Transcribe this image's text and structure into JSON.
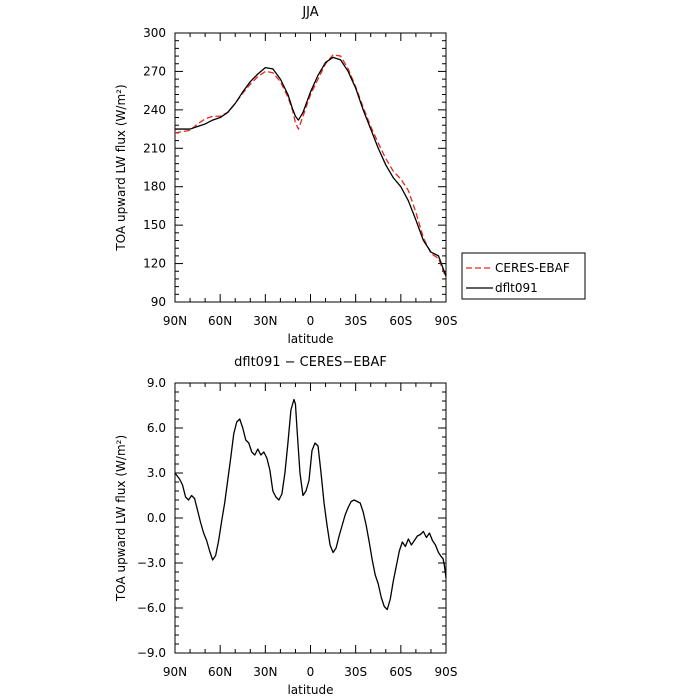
{
  "chart_data": [
    {
      "type": "line",
      "title": "JJA",
      "xlabel": "latitude",
      "ylabel": "TOA upward LW flux (W/m²)",
      "x_tick_labels": [
        "90N",
        "60N",
        "30N",
        "0",
        "30S",
        "60S",
        "90S"
      ],
      "x_tick_values": [
        90,
        60,
        30,
        0,
        -30,
        -60,
        -90
      ],
      "xlim": [
        90,
        -90
      ],
      "ylim": [
        90,
        300
      ],
      "y_ticks": [
        90,
        120,
        150,
        180,
        210,
        240,
        270,
        300
      ],
      "y_tick_labels": [
        "90",
        "120",
        "150",
        "180",
        "210",
        "240",
        "270",
        "300"
      ],
      "legend_position": "right-bottom (outside plot)",
      "series": [
        {
          "name": "CERES-EBAF",
          "style": "dashed",
          "color": "#e8261e",
          "x": [
            90,
            85,
            80,
            75,
            70,
            65,
            60,
            55,
            50,
            45,
            40,
            35,
            30,
            25,
            20,
            15,
            12,
            10,
            8,
            5,
            0,
            -5,
            -10,
            -15,
            -20,
            -25,
            -30,
            -35,
            -40,
            -45,
            -50,
            -55,
            -60,
            -65,
            -70,
            -75,
            -80,
            -85,
            -90
          ],
          "values": [
            222,
            223,
            224,
            229,
            233,
            235,
            235,
            238,
            245,
            253,
            260,
            266,
            270,
            269,
            262,
            250,
            240,
            230,
            225,
            235,
            252,
            264,
            276,
            283,
            282,
            272,
            258,
            242,
            227,
            214,
            202,
            192,
            186,
            177,
            160,
            140,
            128,
            124,
            109
          ]
        },
        {
          "name": "dflt091",
          "style": "solid",
          "color": "#000000",
          "x": [
            90,
            85,
            80,
            75,
            70,
            65,
            60,
            55,
            50,
            45,
            40,
            35,
            30,
            25,
            20,
            15,
            12,
            10,
            8,
            5,
            0,
            -5,
            -10,
            -15,
            -20,
            -25,
            -30,
            -35,
            -40,
            -45,
            -50,
            -55,
            -60,
            -65,
            -70,
            -75,
            -80,
            -85,
            -90
          ],
          "values": [
            225,
            225,
            225,
            227,
            229,
            232,
            234,
            238,
            245,
            254,
            262,
            268,
            273,
            272,
            264,
            252,
            241,
            235,
            232,
            238,
            254,
            267,
            277,
            281,
            279,
            270,
            257,
            240,
            225,
            210,
            197,
            187,
            180,
            169,
            154,
            138,
            129,
            126,
            110
          ]
        }
      ]
    },
    {
      "type": "line",
      "title": "dflt091 − CERES−EBAF",
      "xlabel": "latitude",
      "ylabel": "TOA upward LW flux (W/m²)",
      "x_tick_labels": [
        "90N",
        "60N",
        "30N",
        "0",
        "30S",
        "60S",
        "90S"
      ],
      "x_tick_values": [
        90,
        60,
        30,
        0,
        -30,
        -60,
        -90
      ],
      "xlim": [
        90,
        -90
      ],
      "ylim": [
        -9,
        9
      ],
      "y_ticks": [
        -9,
        -6,
        -3,
        0,
        3,
        6,
        9
      ],
      "y_tick_labels": [
        "−9.0",
        "−6.0",
        "−3.0",
        "0.0",
        "3.0",
        "6.0",
        "9.0"
      ],
      "series": [
        {
          "name": "",
          "style": "solid",
          "color": "#000000",
          "x": [
            90,
            87,
            85,
            83,
            81,
            79,
            77,
            75,
            73,
            71,
            69,
            67,
            65,
            63,
            61,
            59,
            57,
            55,
            53,
            51,
            49,
            47,
            45,
            43,
            41,
            39,
            37,
            35,
            33,
            31,
            29,
            27,
            25,
            23,
            21,
            19,
            17,
            15,
            13,
            11,
            10,
            9,
            7,
            5,
            3,
            1,
            -1,
            -3,
            -5,
            -7,
            -9,
            -11,
            -13,
            -15,
            -17,
            -19,
            -21,
            -23,
            -25,
            -27,
            -29,
            -31,
            -33,
            -35,
            -37,
            -39,
            -41,
            -43,
            -45,
            -47,
            -49,
            -51,
            -53,
            -55,
            -57,
            -59,
            -61,
            -63,
            -65,
            -67,
            -69,
            -71,
            -73,
            -75,
            -77,
            -79,
            -81,
            -83,
            -85,
            -87,
            -88,
            -89,
            -90
          ],
          "values": [
            3.0,
            2.6,
            2.2,
            1.4,
            1.2,
            1.5,
            1.3,
            0.5,
            -0.3,
            -1.0,
            -1.5,
            -2.2,
            -2.8,
            -2.5,
            -1.5,
            -0.2,
            1.0,
            2.5,
            4.0,
            5.6,
            6.4,
            6.6,
            6.0,
            5.2,
            5.0,
            4.4,
            4.2,
            4.6,
            4.2,
            4.4,
            4.0,
            3.2,
            1.8,
            1.4,
            1.2,
            1.6,
            3.0,
            5.0,
            7.2,
            7.9,
            7.6,
            6.0,
            3.0,
            1.5,
            1.8,
            2.5,
            4.5,
            5.0,
            4.8,
            3.0,
            1.0,
            -0.5,
            -1.8,
            -2.3,
            -2.0,
            -1.2,
            -0.5,
            0.2,
            0.7,
            1.1,
            1.2,
            1.1,
            1.0,
            0.4,
            -0.5,
            -1.6,
            -2.8,
            -3.8,
            -4.4,
            -5.3,
            -5.9,
            -6.1,
            -5.4,
            -4.2,
            -3.2,
            -2.2,
            -1.6,
            -1.9,
            -1.4,
            -1.8,
            -1.5,
            -1.2,
            -1.1,
            -0.9,
            -1.3,
            -1.0,
            -1.5,
            -1.8,
            -2.3,
            -2.6,
            -2.7,
            -3.2,
            -4.0
          ]
        }
      ]
    }
  ]
}
